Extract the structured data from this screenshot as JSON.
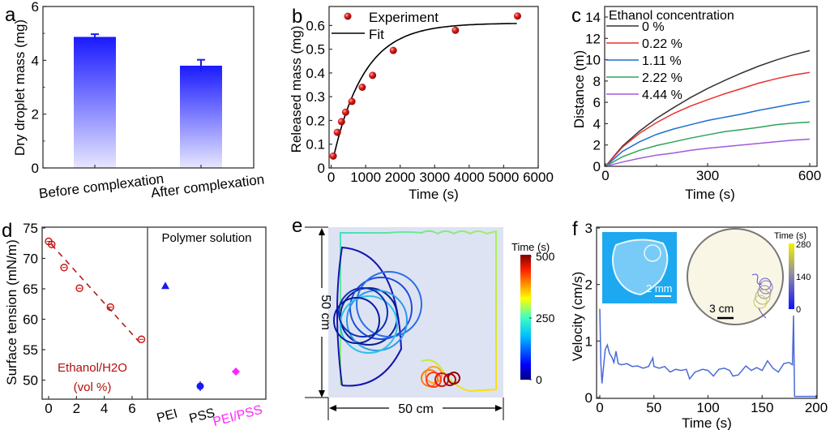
{
  "chart_data": [
    {
      "panel": "a",
      "type": "bar",
      "title": "",
      "xlabel": "",
      "ylabel": "Dry droplet mass (mg)",
      "ylim": [
        0,
        6
      ],
      "yticks": [
        0,
        2,
        4,
        6
      ],
      "categories": [
        "Before complexation",
        "After complexation"
      ],
      "values": [
        4.87,
        3.8
      ],
      "errors": [
        0.1,
        0.22
      ],
      "color": "#1a1aff"
    },
    {
      "panel": "b",
      "type": "scatter",
      "xlabel": "Time (s)",
      "ylabel": "Released mass (mg)",
      "xlim": [
        -60,
        6000
      ],
      "ylim": [
        0,
        0.68
      ],
      "xticks": [
        0,
        1000,
        2000,
        3000,
        4000,
        5000,
        6000
      ],
      "yticks": [
        0,
        0.1,
        0.2,
        0.3,
        0.4,
        0.5,
        0.6
      ],
      "ytick_labels": [
        "0",
        "0.1",
        "0.2",
        "0.3",
        "0.4",
        "0.5",
        "0.6"
      ],
      "legend": [
        "Experiment",
        "Fit"
      ],
      "legend_position": "top-left",
      "series": [
        {
          "name": "Experiment",
          "color": "#cc1111",
          "x": [
            60,
            180,
            300,
            420,
            600,
            900,
            1200,
            1800,
            3600,
            5400
          ],
          "y": [
            0.05,
            0.15,
            0.195,
            0.235,
            0.28,
            0.34,
            0.39,
            0.495,
            0.58,
            0.64
          ]
        },
        {
          "name": "Fit",
          "color": "#000000",
          "model": "y = A(1 - exp(-(x - x0)/tau))",
          "params": {
            "A": 0.61,
            "x0": 0,
            "tau": 900
          },
          "x_range": [
            60,
            5400
          ]
        }
      ]
    },
    {
      "panel": "c",
      "type": "line",
      "xlabel": "Time (s)",
      "ylabel": "Distance (m)",
      "xlim": [
        0,
        610
      ],
      "ylim": [
        0,
        15
      ],
      "xticks": [
        0,
        300,
        600
      ],
      "yticks": [
        0,
        2,
        4,
        6,
        8,
        10,
        12,
        14
      ],
      "legend_title": "Ethanol concentration",
      "legend_position": "top-left",
      "series": [
        {
          "name": "0 %",
          "color": "#333333",
          "x": [
            0,
            50,
            100,
            150,
            200,
            250,
            300,
            350,
            400,
            450,
            500,
            550,
            600
          ],
          "y": [
            0,
            1.9,
            3.3,
            4.5,
            5.5,
            6.45,
            7.3,
            8.05,
            8.75,
            9.4,
            9.95,
            10.45,
            10.85
          ]
        },
        {
          "name": "0.22 %",
          "color": "#e8302f",
          "x": [
            0,
            50,
            100,
            150,
            200,
            250,
            300,
            350,
            400,
            450,
            500,
            550,
            600
          ],
          "y": [
            0,
            1.8,
            3.1,
            4.1,
            4.95,
            5.65,
            6.25,
            6.8,
            7.3,
            7.8,
            8.2,
            8.55,
            8.8
          ]
        },
        {
          "name": "1.11 %",
          "color": "#1f6fd1",
          "x": [
            0,
            50,
            100,
            150,
            200,
            250,
            300,
            350,
            400,
            450,
            500,
            550,
            600
          ],
          "y": [
            0,
            1.4,
            2.3,
            3.0,
            3.5,
            3.9,
            4.3,
            4.6,
            4.9,
            5.25,
            5.55,
            5.85,
            6.1
          ]
        },
        {
          "name": "2.22 %",
          "color": "#2ea35a",
          "x": [
            0,
            50,
            100,
            150,
            200,
            250,
            300,
            350,
            400,
            450,
            500,
            550,
            600
          ],
          "y": [
            0,
            0.9,
            1.5,
            1.95,
            2.3,
            2.65,
            2.95,
            3.25,
            3.45,
            3.65,
            3.9,
            4.05,
            4.15
          ]
        },
        {
          "name": "4.44 %",
          "color": "#a05adc",
          "x": [
            0,
            50,
            100,
            150,
            200,
            250,
            300,
            350,
            400,
            450,
            500,
            550,
            600
          ],
          "y": [
            0,
            0.4,
            0.75,
            1.05,
            1.25,
            1.5,
            1.7,
            1.85,
            2.0,
            2.15,
            2.3,
            2.45,
            2.55
          ]
        }
      ]
    },
    {
      "panel": "d",
      "type": "scatter",
      "xlabel": "",
      "ylabel": "Surface tension (mN/m)",
      "ylim": [
        47,
        75
      ],
      "yticks": [
        50,
        55,
        60,
        65,
        70,
        75
      ],
      "left_xlim": [
        -0.3,
        7.0
      ],
      "left_xticks": [
        0,
        2,
        4,
        6
      ],
      "annotation_left": [
        "Ethanol/H2O",
        "(vol %)"
      ],
      "annotation_right": "Polymer solution",
      "series": [
        {
          "name": "Ethanol/H2O",
          "color": "#cc1111",
          "marker": "open-circle",
          "fit": "dashed-linear",
          "x": [
            0,
            0.22,
            1.11,
            2.22,
            4.44,
            6.67
          ],
          "y": [
            72.8,
            72.3,
            68.5,
            65.1,
            62.0,
            56.7
          ]
        },
        {
          "name": "PEI",
          "color": "#1a1aee",
          "marker": "triangle",
          "y": 65.5,
          "err": 0.4
        },
        {
          "name": "PSS",
          "color": "#1a1aee",
          "marker": "circle",
          "y": 49.0,
          "err": 0.8
        },
        {
          "name": "PEI/PSS",
          "color": "#ff22ff",
          "marker": "diamond",
          "y": 51.4,
          "err": 0.2
        }
      ],
      "categories_right": [
        "PEI",
        "PSS",
        "PEI/PSS"
      ]
    },
    {
      "panel": "e",
      "type": "line",
      "title": "",
      "xlabel": "50 cm",
      "ylabel": "50 cm",
      "colorbar_label": "Time (s)",
      "colorbar_ticks": [
        0,
        250,
        500
      ],
      "colormap": "jet",
      "background": "#dde3f2",
      "description": "Trajectory in 50 cm × 50 cm arena colored by time"
    },
    {
      "panel": "f",
      "type": "line",
      "xlabel": "Time (s)",
      "ylabel": "Velocity (cm/s)",
      "xlim": [
        -2,
        200
      ],
      "ylim": [
        0,
        3
      ],
      "xticks": [
        0,
        50,
        100,
        150,
        200
      ],
      "yticks": [
        0,
        1,
        2,
        3
      ],
      "series": [
        {
          "name": "Velocity",
          "color": "#4a6ad8",
          "x": [
            0,
            1,
            2,
            3,
            5,
            7,
            9,
            11,
            13,
            15,
            17,
            20,
            25,
            30,
            35,
            40,
            45,
            49,
            50,
            55,
            60,
            65,
            70,
            75,
            80,
            83,
            88,
            95,
            100,
            105,
            110,
            115,
            120,
            123,
            128,
            135,
            140,
            145,
            150,
            155,
            160,
            165,
            170,
            175,
            178,
            179,
            180,
            181,
            200
          ],
          "y": [
            1.57,
            0.6,
            0.25,
            0.45,
            0.85,
            0.93,
            0.78,
            0.72,
            0.62,
            0.82,
            0.6,
            0.58,
            0.6,
            0.55,
            0.56,
            0.52,
            0.55,
            0.7,
            0.55,
            0.52,
            0.55,
            0.45,
            0.5,
            0.48,
            0.5,
            0.33,
            0.45,
            0.5,
            0.48,
            0.38,
            0.5,
            0.52,
            0.48,
            0.38,
            0.4,
            0.56,
            0.48,
            0.53,
            0.48,
            0.65,
            0.52,
            0.45,
            0.6,
            0.62,
            0.58,
            1.45,
            0.02,
            0.02,
            0.02
          ]
        }
      ],
      "inset_photo_scale": "2 mm",
      "inset_trajectory_scale": "3 cm",
      "inset_colorbar_label": "Time (s)",
      "inset_colorbar_ticks": [
        0,
        140,
        280
      ]
    }
  ],
  "labels": {
    "a": "a",
    "b": "b",
    "c": "c",
    "d": "d",
    "e": "e",
    "f": "f"
  }
}
